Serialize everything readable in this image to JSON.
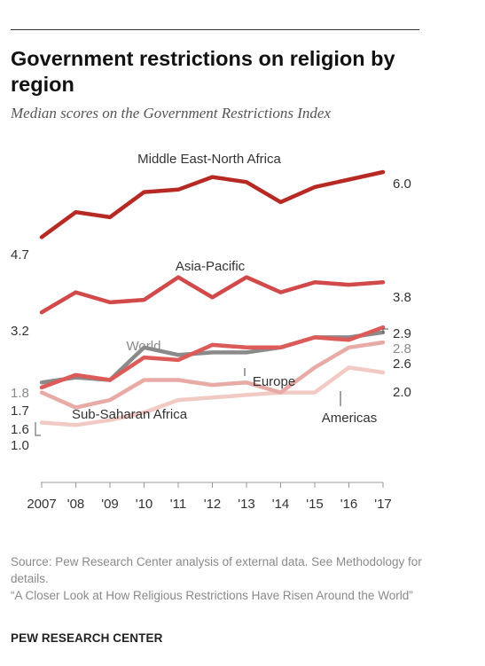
{
  "title": "Government restrictions on religion by region",
  "subtitle": "Median scores on the Government Restrictions Index",
  "chart_data": {
    "type": "line",
    "x": [
      "2007",
      "'08",
      "'09",
      "'10",
      "'11",
      "'12",
      "'13",
      "'14",
      "'15",
      "'16",
      "'17"
    ],
    "ylim": [
      0,
      6.4
    ],
    "grid": false,
    "series": [
      {
        "name": "Middle East-North Africa",
        "color": "#b72a24",
        "width": 4.5,
        "values": [
          4.7,
          5.2,
          5.1,
          5.6,
          5.65,
          5.9,
          5.8,
          5.4,
          5.7,
          5.85,
          6.0
        ],
        "start_label": "4.7",
        "end_label": "6.0"
      },
      {
        "name": "Asia-Pacific",
        "color": "#d2494a",
        "width": 4.5,
        "values": [
          3.2,
          3.6,
          3.4,
          3.45,
          3.9,
          3.5,
          3.9,
          3.6,
          3.8,
          3.75,
          3.8
        ],
        "start_label": "3.2",
        "end_label": "3.8"
      },
      {
        "name": "Americas",
        "color": "#f2cac4",
        "width": 4.5,
        "values": [
          1.0,
          0.95,
          1.05,
          1.2,
          1.45,
          1.5,
          1.55,
          1.6,
          1.6,
          2.1,
          2.0
        ],
        "start_label": "1.0",
        "end_label": "2.0"
      },
      {
        "name": "Sub-Saharan Africa",
        "color": "#e8aaa5",
        "width": 4.5,
        "values": [
          1.6,
          1.3,
          1.45,
          1.85,
          1.85,
          1.75,
          1.8,
          1.6,
          2.1,
          2.5,
          2.6
        ],
        "start_label": "1.6",
        "end_label": "2.6"
      },
      {
        "name": "World",
        "color": "#8a8a8a",
        "width": 4.5,
        "values": [
          1.8,
          1.9,
          1.85,
          2.5,
          2.35,
          2.4,
          2.4,
          2.5,
          2.7,
          2.7,
          2.8
        ],
        "start_label": "1.8",
        "end_label": "2.8"
      },
      {
        "name": "Europe",
        "color": "#dc5a58",
        "width": 4.5,
        "values": [
          1.7,
          1.95,
          1.85,
          2.3,
          2.25,
          2.55,
          2.5,
          2.5,
          2.7,
          2.65,
          2.9
        ],
        "start_label": "1.7",
        "end_label": "2.9"
      }
    ]
  },
  "source": "Source: Pew Research Center analysis of external data. See Methodology for details.",
  "note": "“A Closer Look at How Religious Restrictions Have Risen Around the World”",
  "brand": "PEW RESEARCH CENTER"
}
